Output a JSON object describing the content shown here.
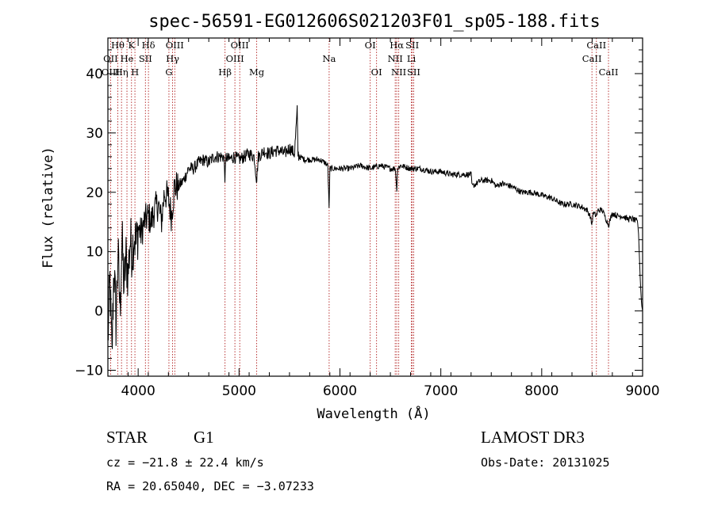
{
  "chart_data": {
    "type": "line",
    "title": "spec-56591-EG012606S021203F01_sp05-188.fits",
    "xlabel": "Wavelength (Å)",
    "ylabel": "Flux (relative)",
    "xlim": [
      3700,
      9000
    ],
    "ylim": [
      -11,
      46
    ],
    "x_ticks": [
      4000,
      5000,
      6000,
      7000,
      8000,
      9000
    ],
    "x_tick_labels": [
      "4000",
      "5000",
      "6000",
      "7000",
      "8000",
      "9000"
    ],
    "y_ticks": [
      -10,
      0,
      10,
      20,
      30,
      40
    ],
    "y_tick_labels": [
      "−10",
      "0",
      "10",
      "20",
      "30",
      "40"
    ],
    "series": [
      {
        "name": "flux",
        "x": [
          3700,
          3720,
          3740,
          3760,
          3780,
          3800,
          3820,
          3840,
          3860,
          3880,
          3900,
          3920,
          3940,
          3960,
          3980,
          4000,
          4030,
          4060,
          4100,
          4130,
          4160,
          4200,
          4230,
          4260,
          4300,
          4330,
          4360,
          4400,
          4450,
          4500,
          4550,
          4600,
          4650,
          4700,
          4750,
          4800,
          4850,
          4862,
          4870,
          4900,
          4950,
          5000,
          5050,
          5100,
          5150,
          5175,
          5190,
          5250,
          5300,
          5350,
          5400,
          5450,
          5500,
          5550,
          5577,
          5582,
          5600,
          5650,
          5700,
          5750,
          5800,
          5850,
          5880,
          5893,
          5900,
          5950,
          6000,
          6100,
          6200,
          6300,
          6400,
          6500,
          6550,
          6563,
          6570,
          6600,
          6700,
          6800,
          6900,
          7000,
          7100,
          7200,
          7300,
          7310,
          7400,
          7500,
          7550,
          7600,
          7700,
          7800,
          7900,
          8000,
          8100,
          8200,
          8300,
          8400,
          8450,
          8480,
          8498,
          8510,
          8542,
          8560,
          8600,
          8662,
          8700,
          8750,
          8800,
          8850,
          8900,
          8950,
          8960,
          8980,
          8990,
          9000
        ],
        "y": [
          -5,
          5,
          -8,
          8,
          -2,
          10,
          0,
          12,
          4,
          9,
          6,
          12,
          10,
          13,
          11,
          14,
          13,
          15,
          16,
          15,
          17,
          18,
          15,
          20,
          19,
          16,
          21,
          21,
          22,
          24,
          24,
          25,
          25.5,
          25,
          26,
          26,
          26,
          22,
          26,
          25.5,
          26,
          25.5,
          26,
          26.5,
          26,
          22,
          26,
          27,
          26.5,
          27,
          27,
          26.5,
          27.5,
          26.5,
          34,
          26.5,
          26,
          25.5,
          25.5,
          25.5,
          25.5,
          25,
          24.5,
          17,
          24,
          24,
          24,
          24,
          24.5,
          24,
          24.5,
          24,
          24,
          20,
          24,
          24.5,
          24,
          24,
          23.5,
          23.5,
          23,
          23,
          23,
          21,
          22,
          22,
          21,
          21.5,
          21,
          20,
          20,
          19.5,
          19,
          18,
          18,
          17.5,
          17,
          16,
          14.5,
          16.5,
          16,
          17,
          17,
          14.5,
          16.5,
          16,
          16,
          15.5,
          15.5,
          15,
          13,
          4,
          1,
          0
        ]
      }
    ],
    "line_labels": [
      {
        "text": "Hθ",
        "wl": 3798,
        "row": 0
      },
      {
        "text": "K",
        "wl": 3934,
        "row": 0
      },
      {
        "text": "Hδ",
        "wl": 4102,
        "row": 0
      },
      {
        "text": "OIII",
        "wl": 4363,
        "row": 0
      },
      {
        "text": "OIII",
        "wl": 5007,
        "row": 0
      },
      {
        "text": "OI",
        "wl": 6300,
        "row": 0
      },
      {
        "text": "Hα",
        "wl": 6563,
        "row": 0
      },
      {
        "text": "SII",
        "wl": 6717,
        "row": 0
      },
      {
        "text": "CaII",
        "wl": 8542,
        "row": 0
      },
      {
        "text": "OII",
        "wl": 3727,
        "row": 1
      },
      {
        "text": "He",
        "wl": 3889,
        "row": 1
      },
      {
        "text": "SII",
        "wl": 4072,
        "row": 1
      },
      {
        "text": "Hγ",
        "wl": 4341,
        "row": 1
      },
      {
        "text": "OIII",
        "wl": 4959,
        "row": 1
      },
      {
        "text": "Na",
        "wl": 5893,
        "row": 1
      },
      {
        "text": "NII",
        "wl": 6548,
        "row": 1
      },
      {
        "text": "Li",
        "wl": 6708,
        "row": 1
      },
      {
        "text": "CaII",
        "wl": 8498,
        "row": 1
      },
      {
        "text": "OIII",
        "wl": 3727,
        "row": 2
      },
      {
        "text": "Hη",
        "wl": 3835,
        "row": 2
      },
      {
        "text": "H",
        "wl": 3968,
        "row": 2
      },
      {
        "text": "G",
        "wl": 4305,
        "row": 2
      },
      {
        "text": "Hβ",
        "wl": 4861,
        "row": 2
      },
      {
        "text": "Mg",
        "wl": 5175,
        "row": 2
      },
      {
        "text": "OI",
        "wl": 6363,
        "row": 2
      },
      {
        "text": "NII",
        "wl": 6583,
        "row": 2
      },
      {
        "text": "SII",
        "wl": 6731,
        "row": 2
      },
      {
        "text": "CaII",
        "wl": 8662,
        "row": 2
      }
    ],
    "line_markers": [
      3727,
      3798,
      3835,
      3889,
      3934,
      3968,
      4072,
      4102,
      4305,
      4341,
      4363,
      4861,
      4959,
      5007,
      5175,
      5893,
      6300,
      6363,
      6548,
      6563,
      6583,
      6708,
      6717,
      6731,
      8498,
      8542,
      8662
    ],
    "colors": {
      "spectrum": "#000000",
      "markers": "#b22222",
      "axes": "#000000"
    }
  },
  "info": {
    "class": "STAR",
    "subclass": "G1",
    "survey": "LAMOST DR3",
    "cz": "cz = −21.8 ± 22.4 km/s",
    "obs_date": "Obs-Date: 20131025",
    "coords": "RA =  20.65040, DEC =  −3.07233"
  }
}
